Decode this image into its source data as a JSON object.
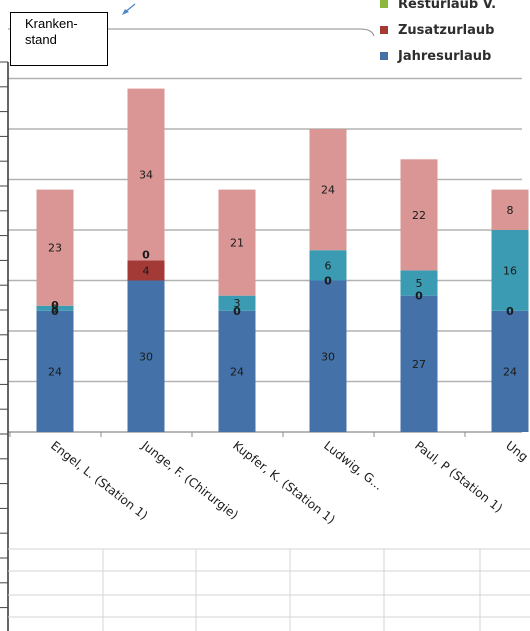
{
  "callout": {
    "line1": "Kranken-",
    "line2": "stand"
  },
  "legend": [
    {
      "label": "Resturlaub V.",
      "color": "#8db63c"
    },
    {
      "label": "Zusatzurlaub",
      "color": "#a33a36"
    },
    {
      "label": "Jahresurlaub",
      "color": "#4472a8"
    }
  ],
  "chart_data": {
    "type": "bar",
    "stacked": true,
    "categories": [
      "Engel, L. (Station 1)",
      "Junge, F. (Chirurgie)",
      "Kupfer, K. (Station 1)",
      "Ludwig, G...",
      "Paul, P (Station 1)",
      "Ung"
    ],
    "series": [
      {
        "name": "Jahresurlaub",
        "color": "#4472a8",
        "values": [
          24,
          30,
          24,
          30,
          27,
          24
        ],
        "labels": [
          "24",
          "30",
          "24",
          "30",
          "27",
          "24"
        ]
      },
      {
        "name": "Zusatzurlaub",
        "color": "#a33a36",
        "values": [
          0,
          4,
          0,
          0,
          0,
          0
        ],
        "labels": [
          "0",
          "4",
          "0",
          "0",
          "0",
          "0"
        ]
      },
      {
        "name": "Resturlaub V.",
        "color": "#8db63c",
        "values": [
          0,
          0,
          0,
          0,
          0,
          0
        ],
        "labels": [
          "0",
          "0",
          "",
          "",
          "",
          ""
        ]
      },
      {
        "color": "#3b9bb3",
        "values": [
          1,
          0,
          3,
          6,
          5,
          16
        ],
        "labels": [
          "1",
          "",
          "3",
          "6",
          "5",
          "16"
        ]
      },
      {
        "color": "#d99694",
        "values": [
          23,
          34,
          21,
          24,
          22,
          8
        ],
        "labels": [
          "23",
          "34",
          "21",
          "24",
          "22",
          "8"
        ]
      }
    ],
    "ylim": [
      0,
      70
    ],
    "grid": true
  }
}
